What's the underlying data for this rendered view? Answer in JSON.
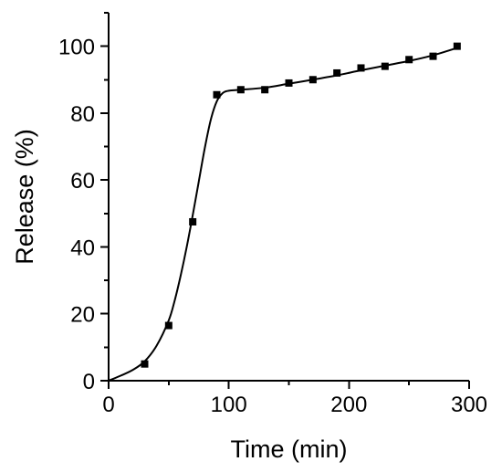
{
  "chart_data": {
    "type": "scatter",
    "xlabel": "Time (min)",
    "ylabel": "Release (%)",
    "xlim": [
      0,
      300
    ],
    "ylim": [
      0,
      110
    ],
    "grid": false,
    "x_ticks": [
      0,
      100,
      200,
      300
    ],
    "x_minor_ticks": [
      50,
      150,
      250
    ],
    "y_ticks": [
      0,
      20,
      40,
      60,
      80,
      100
    ],
    "y_minor_ticks": [
      10,
      30,
      50,
      70,
      90,
      110
    ],
    "series": [
      {
        "marker": "square",
        "color": "#000000",
        "points": [
          {
            "x": 30,
            "y": 5
          },
          {
            "x": 50,
            "y": 16.5
          },
          {
            "x": 70,
            "y": 47.5
          },
          {
            "x": 90,
            "y": 85.5
          },
          {
            "x": 110,
            "y": 87
          },
          {
            "x": 130,
            "y": 87
          },
          {
            "x": 150,
            "y": 89
          },
          {
            "x": 170,
            "y": 90
          },
          {
            "x": 190,
            "y": 92
          },
          {
            "x": 210,
            "y": 93.5
          },
          {
            "x": 230,
            "y": 94
          },
          {
            "x": 250,
            "y": 96
          },
          {
            "x": 270,
            "y": 97
          },
          {
            "x": 290,
            "y": 100
          }
        ]
      }
    ],
    "fit_curve": {
      "color": "#000000",
      "points": [
        {
          "x": 0,
          "y": 0
        },
        {
          "x": 10,
          "y": 1.5
        },
        {
          "x": 20,
          "y": 3.2
        },
        {
          "x": 30,
          "y": 5.8
        },
        {
          "x": 40,
          "y": 10.5
        },
        {
          "x": 50,
          "y": 18
        },
        {
          "x": 55,
          "y": 24
        },
        {
          "x": 60,
          "y": 31.5
        },
        {
          "x": 65,
          "y": 40
        },
        {
          "x": 70,
          "y": 49.5
        },
        {
          "x": 75,
          "y": 59.5
        },
        {
          "x": 80,
          "y": 69.5
        },
        {
          "x": 85,
          "y": 78
        },
        {
          "x": 90,
          "y": 83.5
        },
        {
          "x": 95,
          "y": 86
        },
        {
          "x": 100,
          "y": 86.7
        },
        {
          "x": 110,
          "y": 87
        },
        {
          "x": 130,
          "y": 87.6
        },
        {
          "x": 150,
          "y": 88.8
        },
        {
          "x": 170,
          "y": 90
        },
        {
          "x": 190,
          "y": 91.3
        },
        {
          "x": 210,
          "y": 92.8
        },
        {
          "x": 230,
          "y": 94.2
        },
        {
          "x": 250,
          "y": 95.6
        },
        {
          "x": 270,
          "y": 97.3
        },
        {
          "x": 290,
          "y": 99.5
        }
      ]
    }
  }
}
